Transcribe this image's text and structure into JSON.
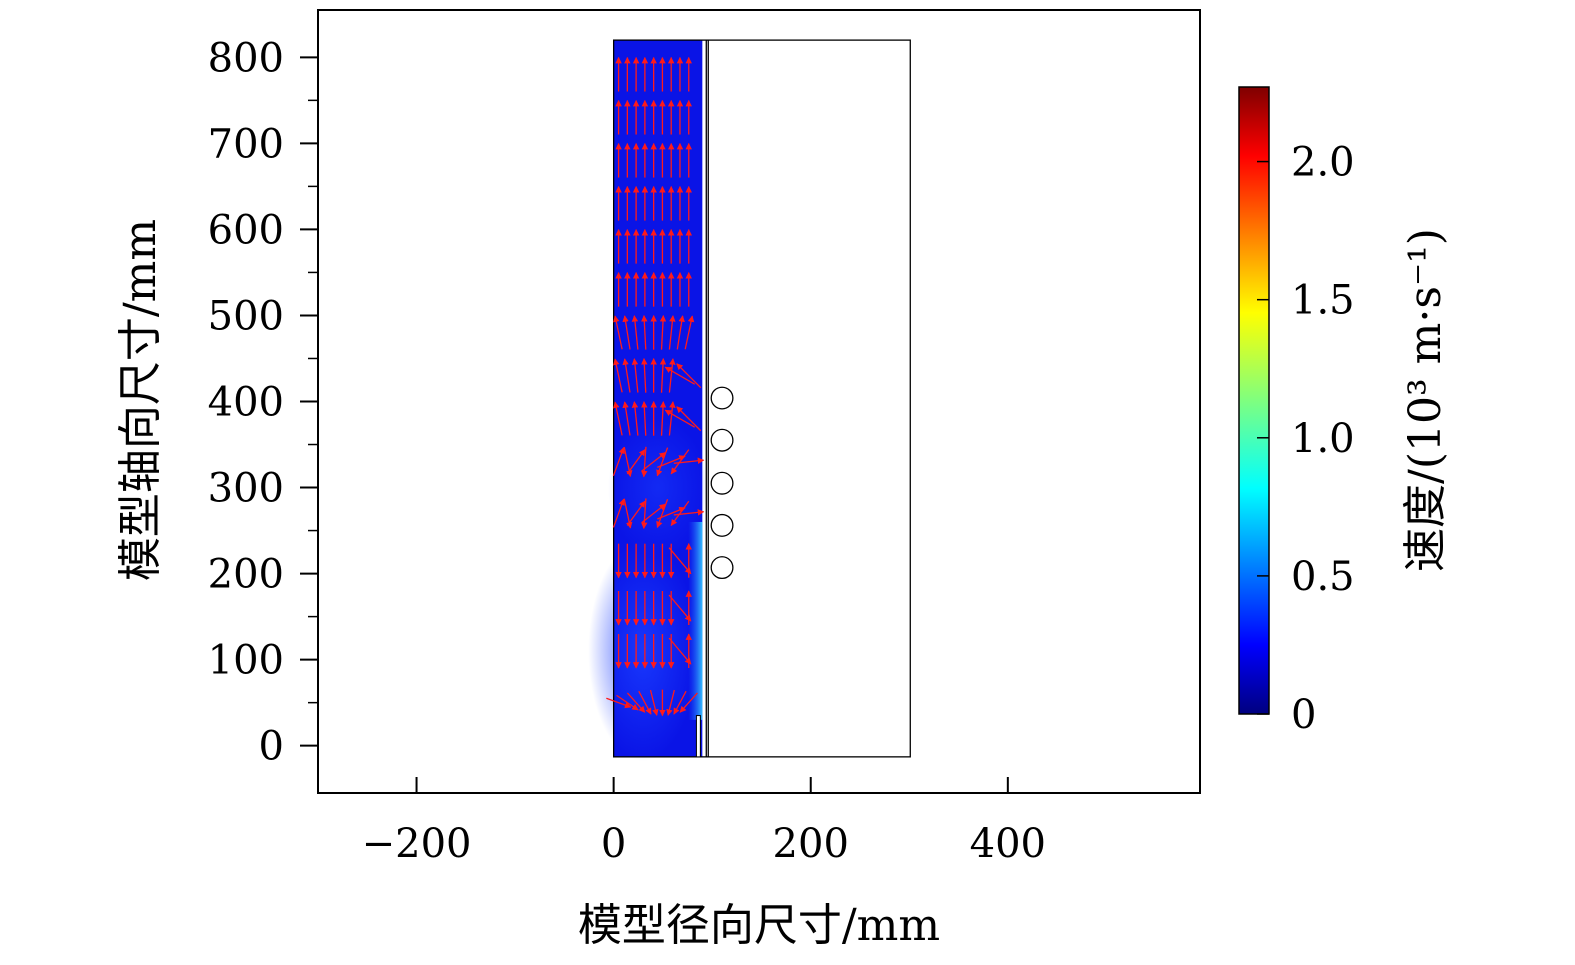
{
  "chart_data": {
    "type": "heatmap",
    "title": "",
    "xlabel": "模型径向尺寸/mm",
    "ylabel": "模型轴向尺寸/mm",
    "xlim": [
      -300,
      595
    ],
    "ylim": [
      -55,
      855
    ],
    "x_ticks": [
      -200,
      0,
      200,
      400
    ],
    "x_tick_labels": [
      "−200",
      "0",
      "200",
      "400"
    ],
    "y_ticks": [
      0,
      100,
      200,
      300,
      400,
      500,
      600,
      700,
      800
    ],
    "y_tick_labels": [
      "0",
      "100",
      "200",
      "300",
      "400",
      "500",
      "600",
      "700",
      "800"
    ],
    "y_minor_step": 50,
    "grid": false,
    "domain": {
      "outer_box": {
        "x": [
          0,
          301
        ],
        "y": [
          -13,
          820
        ]
      },
      "fluid_region": {
        "x": [
          0,
          90
        ],
        "y": [
          -13,
          820
        ]
      },
      "wall_lines_x": [
        94,
        96
      ],
      "wall_stub": {
        "x": [
          84,
          88
        ],
        "y": [
          -13,
          35
        ]
      }
    },
    "circles": {
      "x": 110,
      "radius": 11,
      "y": [
        404,
        355,
        305,
        256,
        207
      ]
    },
    "colorbar": {
      "label": "速度/(10³ m·s⁻¹)",
      "colormap": "jet",
      "min": 0,
      "max": 2.27,
      "ticks": [
        0,
        0.5,
        1.0,
        1.5,
        2.0
      ],
      "tick_labels": [
        "0",
        "0.5",
        "1.0",
        "1.5",
        "2.0"
      ]
    },
    "vector_field": {
      "color": "#ff1a1a",
      "rows": [
        {
          "y": 780,
          "dir": "up"
        },
        {
          "y": 730,
          "dir": "up"
        },
        {
          "y": 680,
          "dir": "up"
        },
        {
          "y": 630,
          "dir": "up"
        },
        {
          "y": 580,
          "dir": "up"
        },
        {
          "y": 530,
          "dir": "up"
        },
        {
          "y": 480,
          "dir": "up"
        },
        {
          "y": 430,
          "dir": "up"
        },
        {
          "y": 380,
          "dir": "up"
        },
        {
          "y": 330,
          "dir": "mixed"
        },
        {
          "y": 270,
          "dir": "mixed"
        },
        {
          "y": 215,
          "dir": "down"
        },
        {
          "y": 160,
          "dir": "down"
        },
        {
          "y": 110,
          "dir": "down"
        },
        {
          "y": 50,
          "dir": "swirl"
        }
      ]
    }
  }
}
